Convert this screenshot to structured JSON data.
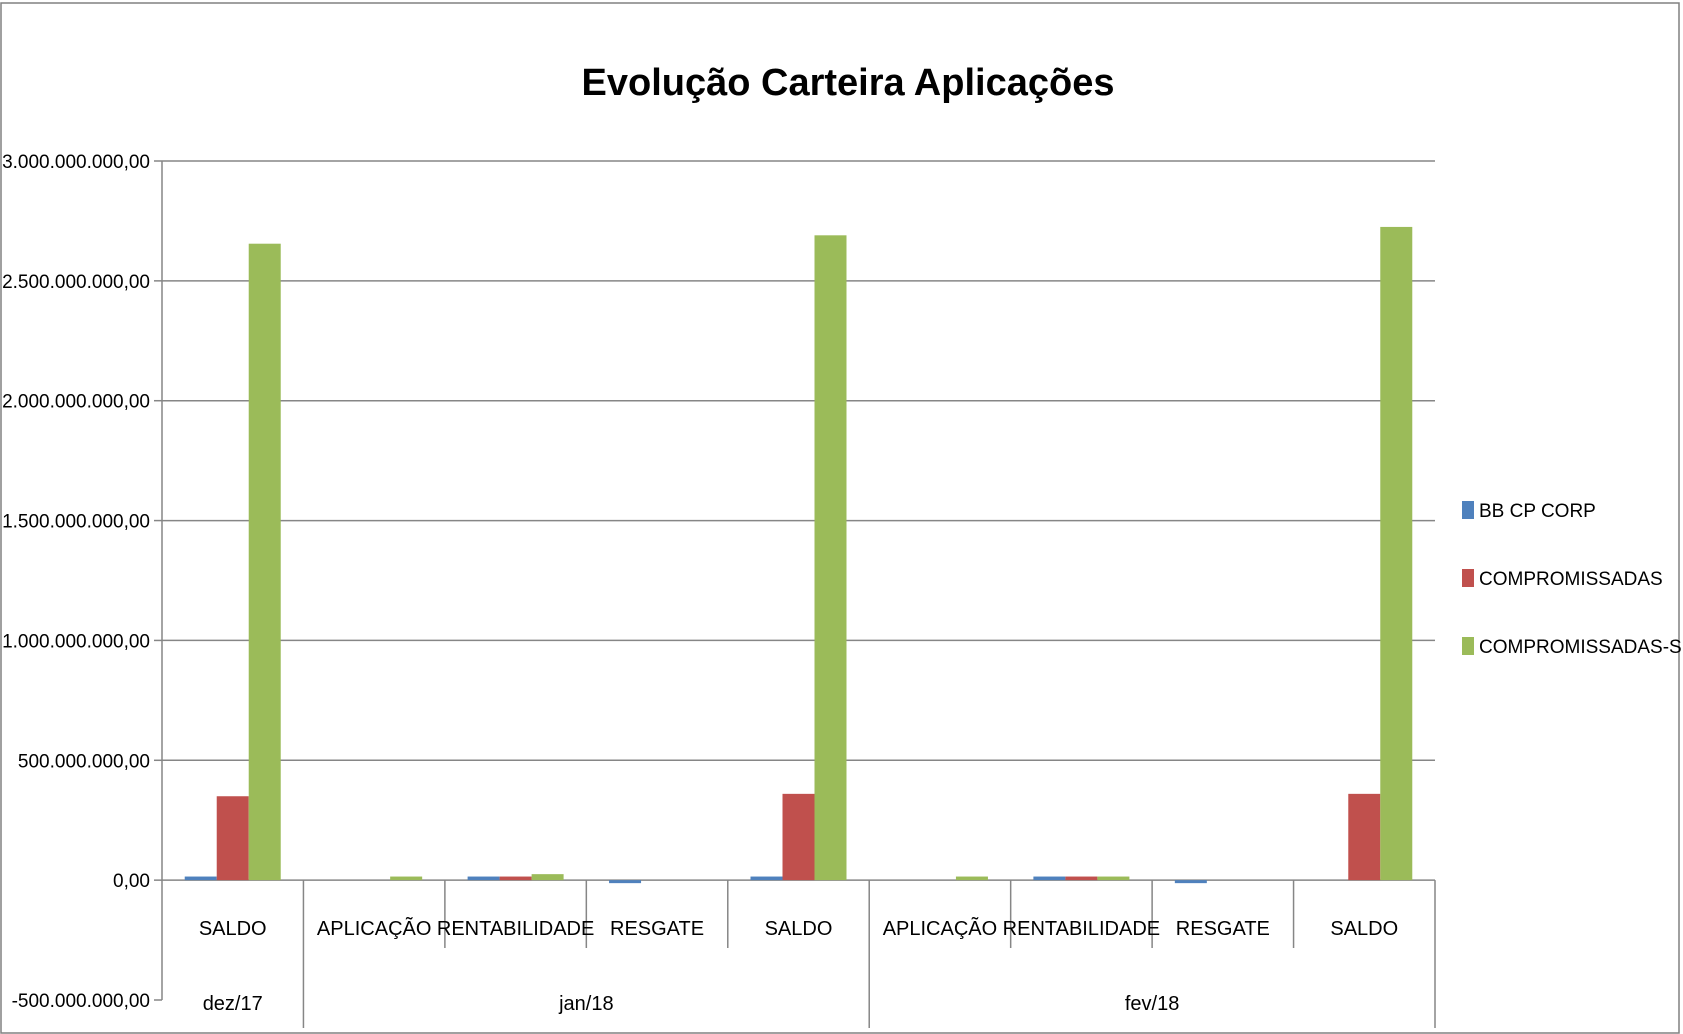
{
  "chart_data": {
    "type": "bar",
    "title": "Evolução Carteira Aplicações",
    "xlabel": "",
    "ylabel": "",
    "ylim": [
      -500000000,
      3000000000
    ],
    "yticks": [
      {
        "value": 3000000000,
        "label": "3.000.000.000,00"
      },
      {
        "value": 2500000000,
        "label": "2.500.000.000,00"
      },
      {
        "value": 2000000000,
        "label": "2.000.000.000,00"
      },
      {
        "value": 1500000000,
        "label": "1.500.000.000,00"
      },
      {
        "value": 1000000000,
        "label": "1.000.000.000,00"
      },
      {
        "value": 500000000,
        "label": "500.000.000,00"
      },
      {
        "value": 0,
        "label": "0,00"
      },
      {
        "value": -500000000,
        "label": "-500.000.000,00"
      }
    ],
    "grid": true,
    "legend_position": "right",
    "categories": [
      "SALDO",
      "APLICAÇÃO",
      "RENTABILIDADE",
      "RESGATE",
      "SALDO",
      "APLICAÇÃO",
      "RENTABILIDADE",
      "RESGATE",
      "SALDO"
    ],
    "groups": [
      {
        "label": "dez/17",
        "span": 1
      },
      {
        "label": "jan/18",
        "span": 4
      },
      {
        "label": "fev/18",
        "span": 4
      }
    ],
    "series": [
      {
        "name": "BB CP CORP",
        "color": "#4F81BD",
        "values": [
          15000000,
          0,
          15000000,
          -3000000,
          15000000,
          0,
          15000000,
          -3000000,
          0
        ]
      },
      {
        "name": "COMPROMISSADAS",
        "color": "#C0504D",
        "values": [
          350000000,
          0,
          15000000,
          0,
          360000000,
          0,
          15000000,
          0,
          360000000
        ]
      },
      {
        "name": "COMPROMISSADAS-SELIC",
        "color": "#9BBB59",
        "values": [
          2655000000,
          15000000,
          25000000,
          0,
          2690000000,
          15000000,
          15000000,
          0,
          2725000000
        ]
      }
    ]
  }
}
